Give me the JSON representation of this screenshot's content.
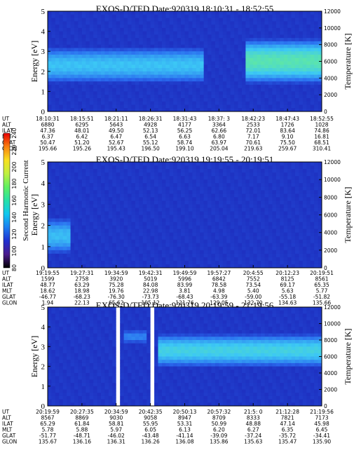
{
  "colors": {
    "background_low": "#1a1fb4",
    "band_mid": "#2a6cf0",
    "band_high": "#3cc8f5",
    "band_peak": "#6af28a",
    "colorbar": [
      "#000000",
      "#4b1a8c",
      "#2030d0",
      "#1c7ef0",
      "#10c8f0",
      "#26e0a8",
      "#60f060",
      "#c0f040",
      "#f8e020",
      "#f88010",
      "#e80000"
    ]
  },
  "colorbar": {
    "label": "Second Harmonic Current",
    "ticks": [
      "80",
      "100",
      "120",
      "140",
      "160",
      "180",
      "200",
      "220",
      "240"
    ]
  },
  "row_labels": [
    "UT",
    "ALT",
    "ILAT",
    "MLT",
    "GLAT",
    "GLON"
  ],
  "chart_data": [
    {
      "type": "heatmap",
      "title": "EXOS-D/TED   Date:920319   18:10:31 - 18:52:55",
      "ylabel": "Energy [eV]",
      "ylabel_right": "Temperature [K]",
      "ylim": [
        0,
        5
      ],
      "yticks": [
        "0",
        "1",
        "2",
        "3",
        "4",
        "5"
      ],
      "y2lim": [
        0,
        12000
      ],
      "y2ticks": [
        "0",
        "2000",
        "4000",
        "6000",
        "8000",
        "10000",
        "12000"
      ],
      "band": [
        {
          "t0": 0.0,
          "t1": 0.57,
          "center": 2.3,
          "width": 1.6,
          "level": 0.62
        },
        {
          "t0": 0.72,
          "t1": 1.0,
          "center": 2.5,
          "width": 2.0,
          "level": 0.85
        }
      ],
      "gaps": [],
      "columns": [
        {
          "UT": "18:10:31",
          "ALT": "6880",
          "ILAT": "47.36",
          "MLT": "6.37",
          "GLAT": "50.47",
          "GLON": "195.66"
        },
        {
          "UT": "18:15:51",
          "ALT": "6295",
          "ILAT": "48.01",
          "MLT": "6.42",
          "GLAT": "51.20",
          "GLON": "195.26"
        },
        {
          "UT": "18:21:11",
          "ALT": "5643",
          "ILAT": "49.50",
          "MLT": "6.47",
          "GLAT": "52.67",
          "GLON": "195.43"
        },
        {
          "UT": "18:26:31",
          "ALT": "4928",
          "ILAT": "52.13",
          "MLT": "6.54",
          "GLAT": "55.12",
          "GLON": "196.50"
        },
        {
          "UT": "18:31:43",
          "ALT": "4177",
          "ILAT": "56.25",
          "MLT": "6.63",
          "GLAT": "58.74",
          "GLON": "199.10"
        },
        {
          "UT": "18:37: 3",
          "ALT": "3364",
          "ILAT": "62.66",
          "MLT": "6.80",
          "GLAT": "63.97",
          "GLON": "205.04"
        },
        {
          "UT": "18:42:23",
          "ALT": "2533",
          "ILAT": "72.01",
          "MLT": "7.17",
          "GLAT": "70.61",
          "GLON": "219.63"
        },
        {
          "UT": "18:47:43",
          "ALT": "1726",
          "ILAT": "83.64",
          "MLT": "9.10",
          "GLAT": "75.50",
          "GLON": "259.67"
        },
        {
          "UT": "18:52:55",
          "ALT": "1028",
          "ILAT": "74.86",
          "MLT": "16.81",
          "GLAT": "68.51",
          "GLON": "310.41"
        }
      ]
    },
    {
      "type": "heatmap",
      "title": "EXOS-D/TED   Date:920319   19:19:55 - 20:19:51",
      "ylabel": "Energy [eV]",
      "ylabel_right": "Temperature [K]",
      "ylim": [
        0,
        5
      ],
      "yticks": [
        "0",
        "1",
        "2",
        "3",
        "4",
        "5"
      ],
      "y2lim": [
        0,
        12000
      ],
      "y2ticks": [
        "0",
        "2000",
        "4000",
        "6000",
        "8000",
        "10000",
        "12000"
      ],
      "band": [
        {
          "t0": 0.0,
          "t1": 0.08,
          "center": 1.5,
          "width": 1.5,
          "level": 0.6
        }
      ],
      "gaps": [],
      "columns": [
        {
          "UT": "19:19:55",
          "ALT": "1599",
          "ILAT": "48.77",
          "MLT": "18.62",
          "GLAT": "-46.77",
          "GLON": "1.94"
        },
        {
          "UT": "19:27:31",
          "ALT": "2758",
          "ILAT": "63.29",
          "MLT": "18.98",
          "GLAT": "-68.23",
          "GLON": "22.13"
        },
        {
          "UT": "19:34:59",
          "ALT": "3920",
          "ILAT": "75.28",
          "MLT": "19.76",
          "GLAT": "-76.30",
          "GLON": "65.62"
        },
        {
          "UT": "19:42:31",
          "ALT": "5019",
          "ILAT": "84.08",
          "MLT": "22.98",
          "GLAT": "-73.73",
          "GLON": "105.12"
        },
        {
          "UT": "19:49:59",
          "ALT": "5996",
          "ILAT": "83.99",
          "MLT": "3.81",
          "GLAT": "-68.43",
          "GLON": "121.76"
        },
        {
          "UT": "19:57:27",
          "ALT": "6842",
          "ILAT": "78.58",
          "MLT": "4.98",
          "GLAT": "-63.39",
          "GLON": "129.05"
        },
        {
          "UT": "20:4:55",
          "ALT": "7552",
          "ILAT": "73.54",
          "MLT": "5.40",
          "GLAT": "-59.00",
          "GLON": "132.70"
        },
        {
          "UT": "20:12:23",
          "ALT": "8125",
          "ILAT": "69.17",
          "MLT": "5.63",
          "GLAT": "-55.18",
          "GLON": "134.63"
        },
        {
          "UT": "20:19:51",
          "ALT": "8561",
          "ILAT": "65.35",
          "MLT": "5.77",
          "GLAT": "-51.82",
          "GLON": "135.66"
        }
      ]
    },
    {
      "type": "heatmap",
      "title": "EXOS-D/TED   Date:920319   20:19:59 - 21:19:56",
      "ylabel": "Energy [eV]",
      "ylabel_right": "Temperature [K]",
      "ylim": [
        0,
        5
      ],
      "yticks": [
        "0",
        "1",
        "2",
        "3",
        "4",
        "5"
      ],
      "y2lim": [
        0,
        12000
      ],
      "y2ticks": [
        "0",
        "2000",
        "4000",
        "6000",
        "8000",
        "10000",
        "12000"
      ],
      "band": [
        {
          "t0": 0.28,
          "t1": 0.36,
          "center": 3.5,
          "width": 0.6,
          "level": 0.4
        },
        {
          "t0": 0.4,
          "t1": 1.0,
          "center": 2.8,
          "width": 1.5,
          "level": 0.7
        }
      ],
      "gaps": [
        [
          0.255,
          0.265
        ],
        [
          0.37,
          0.385
        ]
      ],
      "columns": [
        {
          "UT": "20:19:59",
          "ALT": "8567",
          "ILAT": "65.29",
          "MLT": "5.78",
          "GLAT": "-51.77",
          "GLON": "135.67"
        },
        {
          "UT": "20:27:35",
          "ALT": "8869",
          "ILAT": "61.84",
          "MLT": "5.88",
          "GLAT": "-48.71",
          "GLON": "136.16"
        },
        {
          "UT": "20:34:59",
          "ALT": "9030",
          "ILAT": "58.81",
          "MLT": "5.97",
          "GLAT": "-46.02",
          "GLON": "136.31"
        },
        {
          "UT": "20:42:35",
          "ALT": "9058",
          "ILAT": "55.95",
          "MLT": "6.05",
          "GLAT": "-43.48",
          "GLON": "136.26"
        },
        {
          "UT": "20:50:13",
          "ALT": "8947",
          "ILAT": "53.31",
          "MLT": "6.13",
          "GLAT": "-41.14",
          "GLON": "136.08"
        },
        {
          "UT": "20:57:32",
          "ALT": "8709",
          "ILAT": "50.99",
          "MLT": "6.20",
          "GLAT": "-39.09",
          "GLON": "135.86"
        },
        {
          "UT": "21:5: 0",
          "ALT": "8333",
          "ILAT": "48.88",
          "MLT": "6.27",
          "GLAT": "-37.24",
          "GLON": "135.63"
        },
        {
          "UT": "21:12:28",
          "ALT": "7821",
          "ILAT": "47.14",
          "MLT": "6.35",
          "GLAT": "-35.72",
          "GLON": "135.47"
        },
        {
          "UT": "21:19:56",
          "ALT": "7173",
          "ILAT": "45.98",
          "MLT": "6.45",
          "GLAT": "-34.41",
          "GLON": "135.90"
        }
      ]
    }
  ]
}
